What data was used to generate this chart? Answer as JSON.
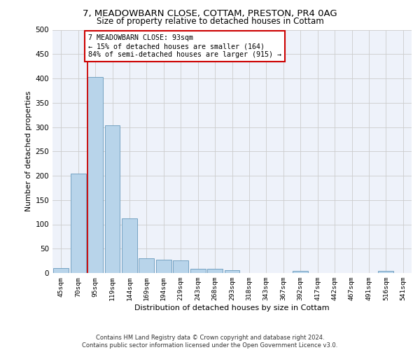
{
  "title_line1": "7, MEADOWBARN CLOSE, COTTAM, PRESTON, PR4 0AG",
  "title_line2": "Size of property relative to detached houses in Cottam",
  "xlabel": "Distribution of detached houses by size in Cottam",
  "ylabel": "Number of detached properties",
  "bins": [
    "45sqm",
    "70sqm",
    "95sqm",
    "119sqm",
    "144sqm",
    "169sqm",
    "194sqm",
    "219sqm",
    "243sqm",
    "268sqm",
    "293sqm",
    "318sqm",
    "343sqm",
    "367sqm",
    "392sqm",
    "417sqm",
    "442sqm",
    "467sqm",
    "491sqm",
    "516sqm",
    "541sqm"
  ],
  "values": [
    10,
    205,
    403,
    303,
    112,
    30,
    28,
    26,
    9,
    8,
    6,
    0,
    0,
    0,
    4,
    0,
    0,
    0,
    0,
    5,
    0
  ],
  "bar_color": "#b8d4ea",
  "bar_edge_color": "#6699bb",
  "subject_line_color": "#cc0000",
  "annotation_text": "7 MEADOWBARN CLOSE: 93sqm\n← 15% of detached houses are smaller (164)\n84% of semi-detached houses are larger (915) →",
  "annotation_box_color": "#ffffff",
  "annotation_box_edge_color": "#cc0000",
  "ylim": [
    0,
    500
  ],
  "yticks": [
    0,
    50,
    100,
    150,
    200,
    250,
    300,
    350,
    400,
    450,
    500
  ],
  "footer_text": "Contains HM Land Registry data © Crown copyright and database right 2024.\nContains public sector information licensed under the Open Government Licence v3.0.",
  "background_color": "#eef2fa",
  "grid_color": "#cccccc"
}
